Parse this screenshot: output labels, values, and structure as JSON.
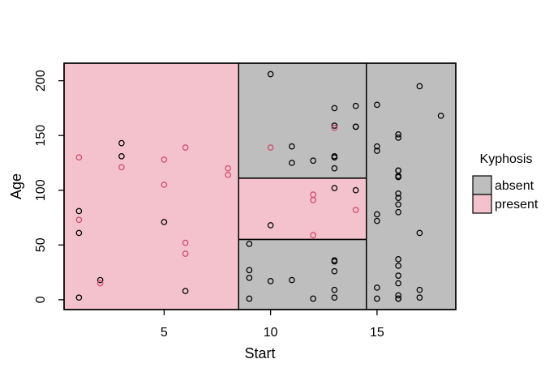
{
  "figure": {
    "background_color": "#ffffff",
    "frame_color": "#000000"
  },
  "chart_data": {
    "type": "scatter",
    "title": "",
    "xlabel": "Start",
    "ylabel": "Age",
    "xlim": [
      0.3,
      18.7
    ],
    "ylim": [
      -9,
      216
    ],
    "x_ticks": [
      5,
      10,
      15
    ],
    "y_ticks": [
      0,
      50,
      100,
      150,
      200
    ],
    "grid": false,
    "point_radius": 3.2,
    "legend": {
      "title": "Kyphosis",
      "position": "right",
      "items": [
        {
          "label": "absent",
          "region_color": "#BEBEBE",
          "point_color": "#000000"
        },
        {
          "label": "present",
          "region_color": "#F4C2CC",
          "point_color": "#CE4A6B"
        }
      ]
    },
    "regions": [
      {
        "class": "present",
        "x": [
          0.3,
          8.5
        ],
        "y": [
          -9,
          216
        ]
      },
      {
        "class": "absent",
        "x": [
          8.5,
          14.5
        ],
        "y": [
          111,
          216
        ]
      },
      {
        "class": "present",
        "x": [
          8.5,
          14.5
        ],
        "y": [
          55,
          111
        ]
      },
      {
        "class": "absent",
        "x": [
          8.5,
          14.5
        ],
        "y": [
          -9,
          55
        ]
      },
      {
        "class": "absent",
        "x": [
          14.5,
          18.7
        ],
        "y": [
          -9,
          216
        ]
      }
    ],
    "series": [
      {
        "name": "absent",
        "points": [
          [
            5,
            71
          ],
          [
            14,
            158
          ],
          [
            1,
            2
          ],
          [
            15,
            1
          ],
          [
            16,
            1
          ],
          [
            17,
            61
          ],
          [
            16,
            37
          ],
          [
            16,
            113
          ],
          [
            16,
            148
          ],
          [
            2,
            18
          ],
          [
            12,
            1
          ],
          [
            18,
            168
          ],
          [
            16,
            1
          ],
          [
            15,
            78
          ],
          [
            13,
            175
          ],
          [
            16,
            80
          ],
          [
            9,
            27
          ],
          [
            16,
            22
          ],
          [
            3,
            131
          ],
          [
            13,
            9
          ],
          [
            6,
            8
          ],
          [
            14,
            100
          ],
          [
            16,
            4
          ],
          [
            16,
            151
          ],
          [
            16,
            31
          ],
          [
            11,
            125
          ],
          [
            13,
            130
          ],
          [
            16,
            112
          ],
          [
            11,
            140
          ],
          [
            16,
            93
          ],
          [
            9,
            1
          ],
          [
            9,
            20
          ],
          [
            13,
            35
          ],
          [
            3,
            143
          ],
          [
            1,
            61
          ],
          [
            16,
            97
          ],
          [
            15,
            136
          ],
          [
            13,
            131
          ],
          [
            14,
            177
          ],
          [
            10,
            68
          ],
          [
            17,
            9
          ],
          [
            17,
            2
          ],
          [
            15,
            140
          ],
          [
            15,
            72
          ],
          [
            13,
            2
          ],
          [
            9,
            51
          ],
          [
            13,
            102
          ],
          [
            1,
            81
          ],
          [
            16,
            118
          ],
          [
            16,
            118
          ],
          [
            10,
            17
          ],
          [
            17,
            195
          ],
          [
            13,
            159
          ],
          [
            11,
            18
          ],
          [
            16,
            15
          ],
          [
            14,
            158
          ],
          [
            12,
            127
          ],
          [
            16,
            87
          ],
          [
            10,
            206
          ],
          [
            15,
            11
          ],
          [
            15,
            178
          ],
          [
            13,
            26
          ],
          [
            13,
            120
          ],
          [
            13,
            36
          ]
        ]
      },
      {
        "name": "present",
        "points": [
          [
            5,
            128
          ],
          [
            12,
            59
          ],
          [
            14,
            82
          ],
          [
            5,
            105
          ],
          [
            12,
            96
          ],
          [
            2,
            15
          ],
          [
            6,
            52
          ],
          [
            12,
            91
          ],
          [
            1,
            73
          ],
          [
            10,
            139
          ],
          [
            3,
            121
          ],
          [
            6,
            139
          ],
          [
            8,
            120
          ],
          [
            1,
            130
          ],
          [
            8,
            114
          ],
          [
            13,
            157
          ],
          [
            6,
            42
          ]
        ]
      }
    ]
  }
}
